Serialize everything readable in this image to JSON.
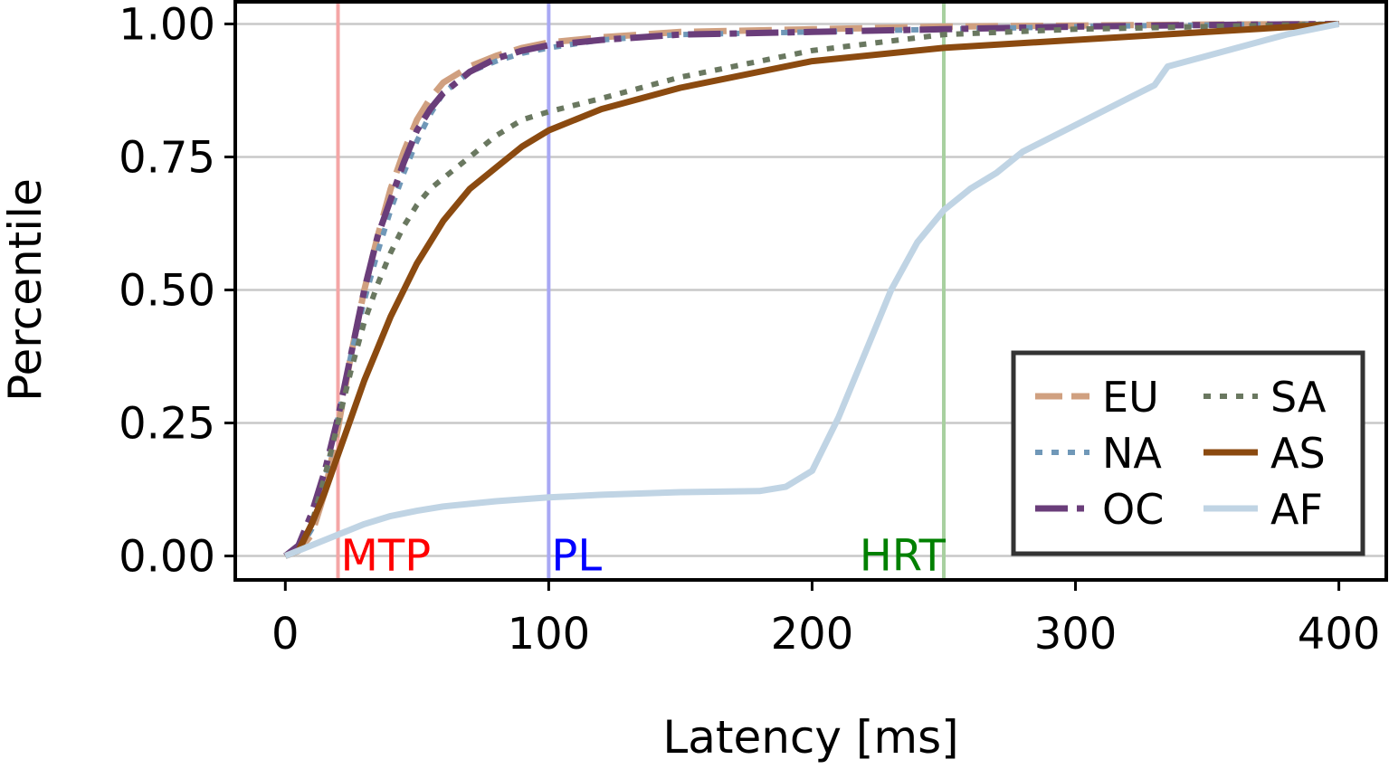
{
  "chart_data": {
    "type": "line",
    "title": "",
    "xlabel": "Latency [ms]",
    "ylabel": "Percentile",
    "xlim": [
      -19,
      418
    ],
    "ylim": [
      -0.045,
      1.045
    ],
    "xticks": [
      0,
      100,
      200,
      300,
      400
    ],
    "xtick_labels": [
      "0",
      "100",
      "200",
      "300",
      "400"
    ],
    "yticks": [
      0,
      0.25,
      0.5,
      0.75,
      1.0
    ],
    "ytick_labels": [
      "0.00",
      "0.25",
      "0.50",
      "0.75",
      "1.00"
    ],
    "grid": "horizontal",
    "legend_position": "lower-right",
    "legend_columns": 2,
    "reference_lines": [
      {
        "name": "mtp",
        "label": "MTP",
        "x": 20,
        "color": "#ff0000",
        "line_color": "#f4a6a6"
      },
      {
        "name": "pl",
        "label": "PL",
        "x": 100,
        "color": "#0000ff",
        "line_color": "#a8a8f4"
      },
      {
        "name": "hrt",
        "label": "HRT",
        "x": 250,
        "color": "#008000",
        "line_color": "#a8d0a0"
      }
    ],
    "series": [
      {
        "name": "EU",
        "color": "#d0a080",
        "style": "dashed",
        "x": [
          0,
          5,
          10,
          15,
          20,
          25,
          30,
          35,
          40,
          45,
          50,
          55,
          60,
          70,
          80,
          90,
          100,
          120,
          150,
          200,
          250,
          300,
          350,
          400
        ],
        "y": [
          0,
          0.01,
          0.04,
          0.12,
          0.24,
          0.38,
          0.5,
          0.6,
          0.69,
          0.76,
          0.82,
          0.86,
          0.89,
          0.92,
          0.94,
          0.955,
          0.965,
          0.975,
          0.985,
          0.99,
          0.995,
          0.997,
          0.999,
          1.0
        ]
      },
      {
        "name": "NA",
        "color": "#7098b8",
        "style": "dotted",
        "x": [
          0,
          5,
          10,
          15,
          20,
          25,
          30,
          35,
          40,
          45,
          50,
          55,
          60,
          70,
          80,
          90,
          100,
          120,
          150,
          200,
          250,
          300,
          350,
          400
        ],
        "y": [
          0,
          0.01,
          0.05,
          0.14,
          0.26,
          0.38,
          0.48,
          0.57,
          0.65,
          0.72,
          0.78,
          0.83,
          0.87,
          0.91,
          0.93,
          0.945,
          0.955,
          0.97,
          0.98,
          0.985,
          0.99,
          0.995,
          0.998,
          1.0
        ]
      },
      {
        "name": "OC",
        "color": "#6a3d7a",
        "style": "dashdot",
        "x": [
          0,
          5,
          10,
          15,
          20,
          25,
          30,
          35,
          40,
          45,
          50,
          55,
          60,
          70,
          80,
          90,
          100,
          120,
          150,
          200,
          250,
          300,
          350,
          400
        ],
        "y": [
          0,
          0.02,
          0.08,
          0.16,
          0.26,
          0.38,
          0.5,
          0.6,
          0.67,
          0.74,
          0.8,
          0.84,
          0.87,
          0.91,
          0.935,
          0.95,
          0.96,
          0.97,
          0.98,
          0.985,
          0.99,
          0.995,
          0.998,
          1.0
        ]
      },
      {
        "name": "SA",
        "color": "#6a7860",
        "style": "dotted",
        "x": [
          0,
          5,
          10,
          15,
          20,
          25,
          30,
          35,
          40,
          45,
          50,
          55,
          60,
          70,
          80,
          90,
          100,
          120,
          150,
          200,
          250,
          300,
          350,
          400
        ],
        "y": [
          0,
          0.01,
          0.06,
          0.15,
          0.25,
          0.35,
          0.44,
          0.51,
          0.57,
          0.62,
          0.66,
          0.69,
          0.71,
          0.75,
          0.79,
          0.82,
          0.835,
          0.86,
          0.9,
          0.95,
          0.98,
          0.99,
          0.995,
          1.0
        ]
      },
      {
        "name": "AS",
        "color": "#8b4a10",
        "style": "solid",
        "x": [
          0,
          5,
          10,
          15,
          20,
          25,
          30,
          35,
          40,
          45,
          50,
          55,
          60,
          70,
          80,
          90,
          100,
          120,
          150,
          200,
          250,
          300,
          350,
          400
        ],
        "y": [
          0,
          0.01,
          0.06,
          0.12,
          0.19,
          0.26,
          0.33,
          0.39,
          0.45,
          0.5,
          0.55,
          0.59,
          0.63,
          0.69,
          0.73,
          0.77,
          0.8,
          0.84,
          0.88,
          0.93,
          0.955,
          0.97,
          0.985,
          1.0
        ]
      },
      {
        "name": "AF",
        "color": "#c0d4e4",
        "style": "solid",
        "x": [
          0,
          10,
          20,
          30,
          40,
          50,
          60,
          80,
          100,
          120,
          150,
          180,
          190,
          200,
          210,
          220,
          230,
          240,
          250,
          260,
          270,
          280,
          300,
          320,
          330,
          335,
          350,
          380,
          400
        ],
        "y": [
          0,
          0.02,
          0.04,
          0.06,
          0.075,
          0.085,
          0.093,
          0.103,
          0.11,
          0.115,
          0.12,
          0.122,
          0.13,
          0.16,
          0.26,
          0.38,
          0.5,
          0.59,
          0.65,
          0.69,
          0.72,
          0.76,
          0.81,
          0.86,
          0.885,
          0.92,
          0.94,
          0.98,
          1.0
        ]
      }
    ]
  }
}
